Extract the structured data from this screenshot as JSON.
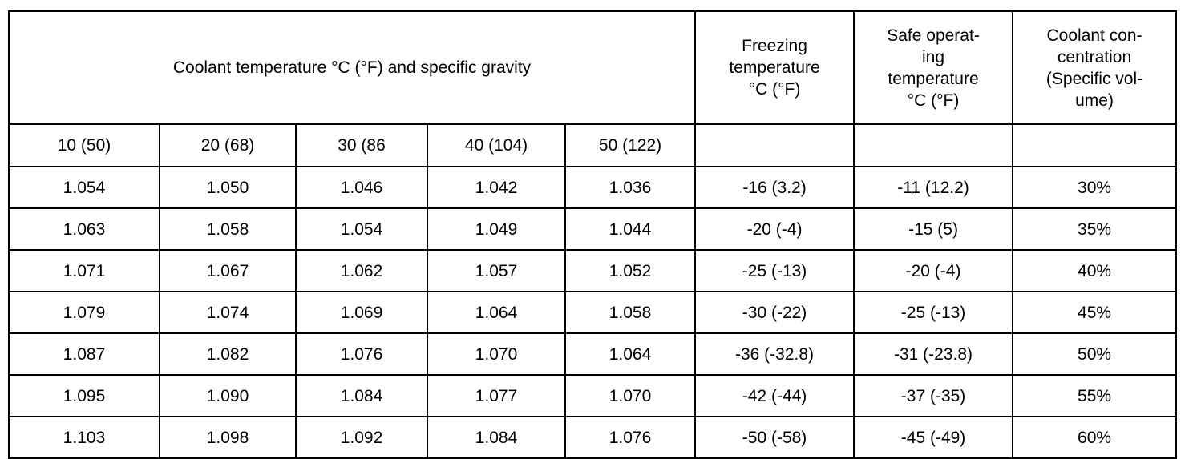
{
  "table": {
    "group_header": "Coolant temperature °C (°F) and specific gravity",
    "freezing_header": [
      "Freezing",
      "temperature",
      "°C (°F)"
    ],
    "safe_header": [
      "Safe operat-",
      "ing",
      "temperature",
      "°C (°F)"
    ],
    "concentration_header": [
      "Coolant con-",
      "centration",
      "(Specific vol-",
      "ume)"
    ],
    "temperatures": [
      "10 (50)",
      "20 (68)",
      "30 (86",
      "40 (104)",
      "50 (122)"
    ],
    "rows": [
      {
        "sg": [
          "1.054",
          "1.050",
          "1.046",
          "1.042",
          "1.036"
        ],
        "freezing": "-16 (3.2)",
        "safe": "-11 (12.2)",
        "concentration": "30%"
      },
      {
        "sg": [
          "1.063",
          "1.058",
          "1.054",
          "1.049",
          "1.044"
        ],
        "freezing": "-20 (-4)",
        "safe": "-15 (5)",
        "concentration": "35%"
      },
      {
        "sg": [
          "1.071",
          "1.067",
          "1.062",
          "1.057",
          "1.052"
        ],
        "freezing": "-25 (-13)",
        "safe": "-20 (-4)",
        "concentration": "40%"
      },
      {
        "sg": [
          "1.079",
          "1.074",
          "1.069",
          "1.064",
          "1.058"
        ],
        "freezing": "-30 (-22)",
        "safe": "-25 (-13)",
        "concentration": "45%"
      },
      {
        "sg": [
          "1.087",
          "1.082",
          "1.076",
          "1.070",
          "1.064"
        ],
        "freezing": "-36 (-32.8)",
        "safe": "-31 (-23.8)",
        "concentration": "50%"
      },
      {
        "sg": [
          "1.095",
          "1.090",
          "1.084",
          "1.077",
          "1.070"
        ],
        "freezing": "-42 (-44)",
        "safe": "-37 (-35)",
        "concentration": "55%"
      },
      {
        "sg": [
          "1.103",
          "1.098",
          "1.092",
          "1.084",
          "1.076"
        ],
        "freezing": "-50 (-58)",
        "safe": "-45 (-49)",
        "concentration": "60%"
      }
    ]
  }
}
